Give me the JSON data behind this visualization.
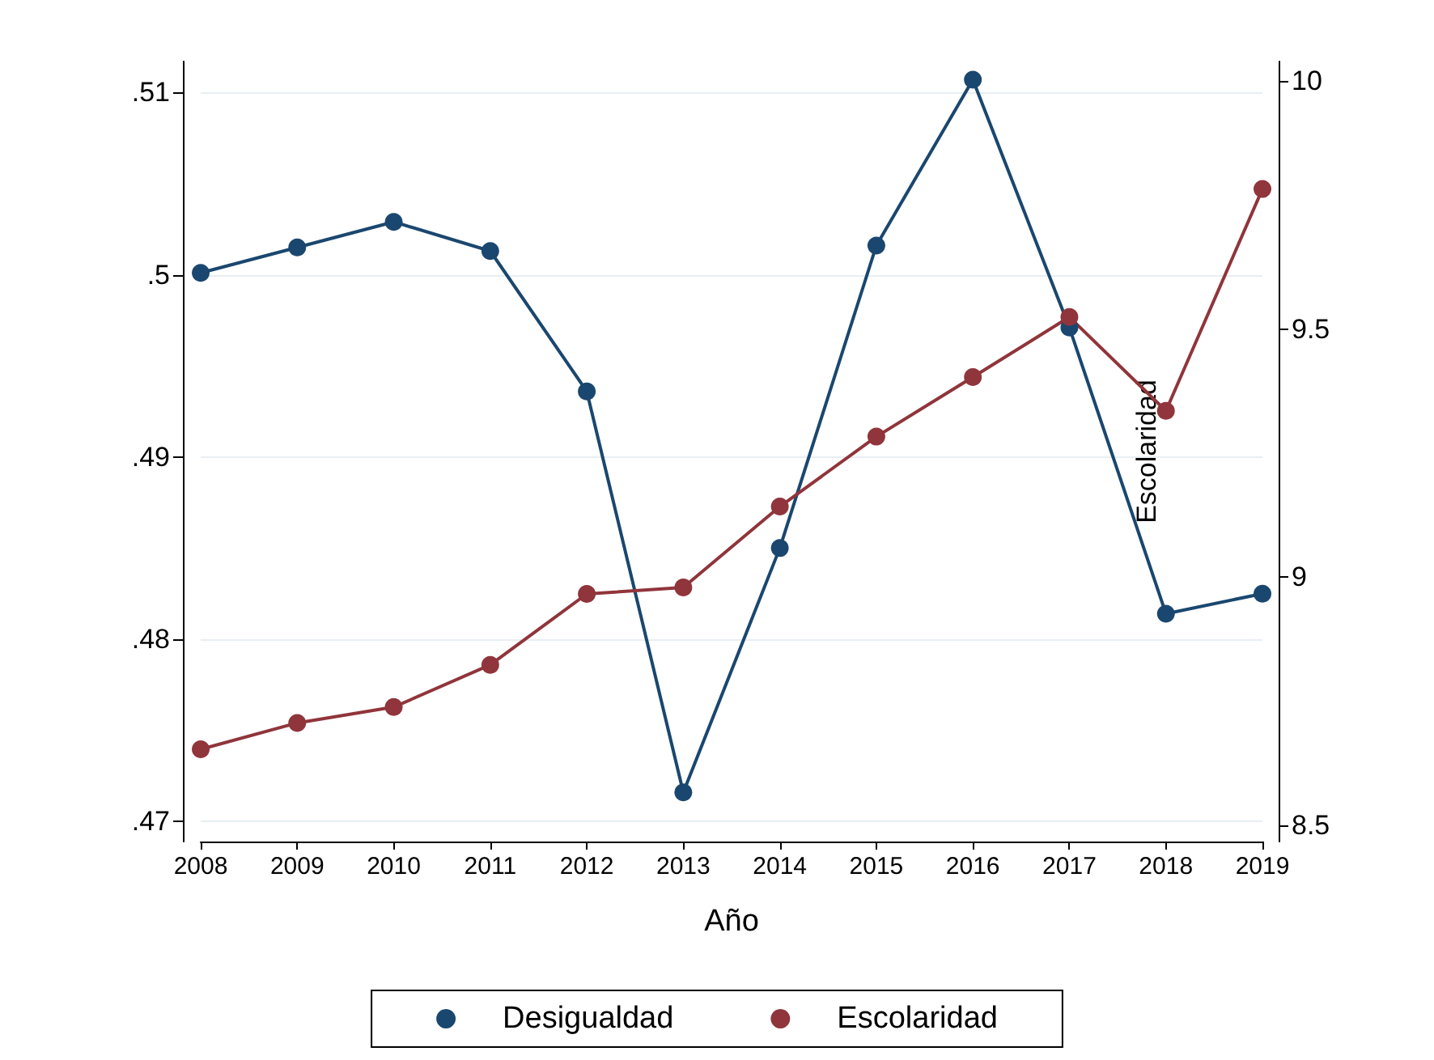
{
  "chart_data": {
    "type": "line",
    "xlabel": "Año",
    "y2label": "Escolaridad",
    "categories": [
      "2008",
      "2009",
      "2010",
      "2011",
      "2012",
      "2013",
      "2014",
      "2015",
      "2016",
      "2017",
      "2018",
      "2019"
    ],
    "series": [
      {
        "name": "Desigualdad",
        "color": "#1a476f",
        "values": [
          0.5001,
          0.5015,
          0.5029,
          0.5013,
          0.4936,
          0.4716,
          0.485,
          0.5016,
          0.5107,
          0.4971,
          0.4814,
          0.4825
        ]
      },
      {
        "name": "Escolaridad",
        "color": "#90353b",
        "axis": "y2",
        "values": [
          8.653,
          8.706,
          8.738,
          8.823,
          8.966,
          8.979,
          9.142,
          9.283,
          9.403,
          9.524,
          9.335,
          9.782
        ]
      }
    ],
    "ylim": [
      0.4689,
      0.5117
    ],
    "yticks": [
      {
        "value": 0.47,
        "label": ".47"
      },
      {
        "value": 0.48,
        "label": ".48"
      },
      {
        "value": 0.49,
        "label": ".49"
      },
      {
        "value": 0.5,
        "label": ".5"
      },
      {
        "value": 0.51,
        "label": ".51"
      }
    ],
    "y2lim": [
      8.467,
      10.039
    ],
    "y2ticks": [
      8.5,
      9,
      9.5,
      10
    ],
    "grid": "y",
    "legend": "bottom",
    "marker": "circle",
    "line_style": "solid"
  }
}
